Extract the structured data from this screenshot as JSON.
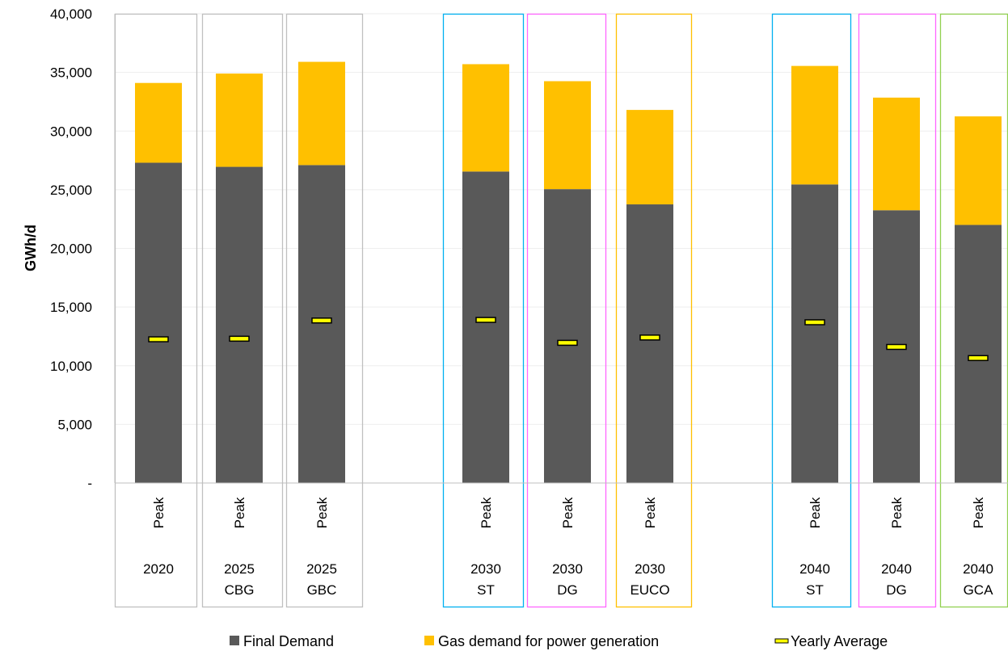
{
  "chart_data": {
    "type": "bar",
    "stacked": true,
    "ylabel": "GWh/d",
    "xlabel": "",
    "ylim": [
      0,
      40000
    ],
    "y_ticks": [
      0,
      5000,
      10000,
      15000,
      20000,
      25000,
      30000,
      35000,
      40000
    ],
    "y_tick_labels": [
      "-",
      "5,000",
      "10,000",
      "15,000",
      "20,000",
      "25,000",
      "30,000",
      "35,000",
      "40,000"
    ],
    "grid": true,
    "legend_position": "bottom",
    "categories": [
      {
        "sub": "Peak",
        "year": "2020",
        "scenario": "",
        "group_color": "#bfbfbf"
      },
      {
        "sub": "Peak",
        "year": "2025",
        "scenario": "CBG",
        "group_color": "#bfbfbf"
      },
      {
        "sub": "Peak",
        "year": "2025",
        "scenario": "GBC",
        "group_color": "#bfbfbf"
      },
      {
        "sub": "Peak",
        "year": "2030",
        "scenario": "ST",
        "group_color": "#00b0f0"
      },
      {
        "sub": "Peak",
        "year": "2030",
        "scenario": "DG",
        "group_color": "#ff66ff"
      },
      {
        "sub": "Peak",
        "year": "2030",
        "scenario": "EUCO",
        "group_color": "#ffc000"
      },
      {
        "sub": "Peak",
        "year": "2040",
        "scenario": "ST",
        "group_color": "#00b0f0"
      },
      {
        "sub": "Peak",
        "year": "2040",
        "scenario": "DG",
        "group_color": "#ff66ff"
      },
      {
        "sub": "Peak",
        "year": "2040",
        "scenario": "GCA",
        "group_color": "#92d050"
      }
    ],
    "series": [
      {
        "name": "Final Demand",
        "color": "#595959",
        "values": [
          27300,
          26950,
          27100,
          26550,
          25050,
          23750,
          25450,
          23250,
          22000
        ]
      },
      {
        "name": "Gas demand for power generation",
        "color": "#ffc000",
        "values": [
          6800,
          7950,
          8800,
          9150,
          9200,
          8050,
          10100,
          9600,
          9250
        ]
      }
    ],
    "markers": {
      "name": "Yearly Average",
      "color": "#ffff00",
      "values": [
        12250,
        12300,
        13850,
        13900,
        11950,
        12400,
        13700,
        11600,
        10650
      ]
    }
  }
}
